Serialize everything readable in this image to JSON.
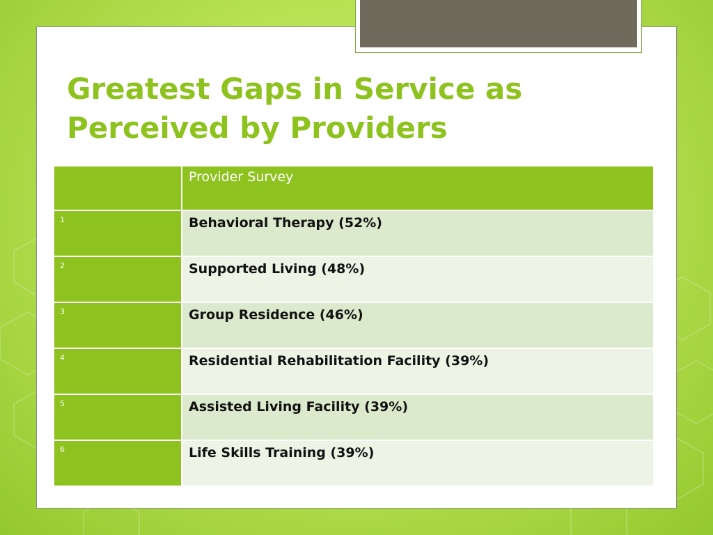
{
  "slide": {
    "title": "Greatest Gaps in Service as Perceived by Providers"
  },
  "table": {
    "header": {
      "corner": "",
      "column": "Provider Survey"
    },
    "rows": [
      {
        "rank": "1",
        "item": "Behavioral Therapy (52%)"
      },
      {
        "rank": "2",
        "item": "Supported Living (48%)"
      },
      {
        "rank": "3",
        "item": "Group Residence (46%)"
      },
      {
        "rank": "4",
        "item": "Residential Rehabilitation Facility (39%)"
      },
      {
        "rank": "5",
        "item": "Assisted Living Facility (39%)"
      },
      {
        "rank": "6",
        "item": "Life Skills Training (39%)"
      }
    ]
  },
  "colors": {
    "accent": "#8ec21e",
    "row_odd": "#dbe9cc",
    "row_even": "#edf4e6",
    "title_tab": "#6f6a5c"
  }
}
